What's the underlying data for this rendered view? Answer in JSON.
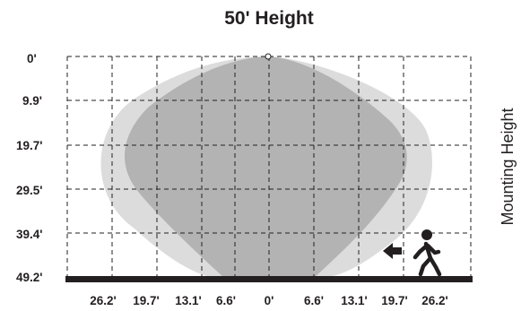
{
  "title": "50' Height",
  "side_label": "Mounting Height",
  "y_axis_labels": [
    "0'",
    "9.9'",
    "19.7'",
    "29.5'",
    "39.4'",
    "49.2'"
  ],
  "x_axis_labels": [
    "26.2'",
    "19.7'",
    "13.1'",
    "6.6'",
    "0'",
    "6.6'",
    "13.1'",
    "19.7'",
    "26.2'"
  ],
  "colors": {
    "outer_pattern": "#dcdcdc",
    "inner_pattern": "#b3b3b3",
    "floor": "#231f20",
    "text": "#231f20"
  },
  "icons": {
    "sensor": "sensor-dot-icon",
    "walker": "walking-person-icon",
    "direction": "arrow-left-icon"
  }
}
